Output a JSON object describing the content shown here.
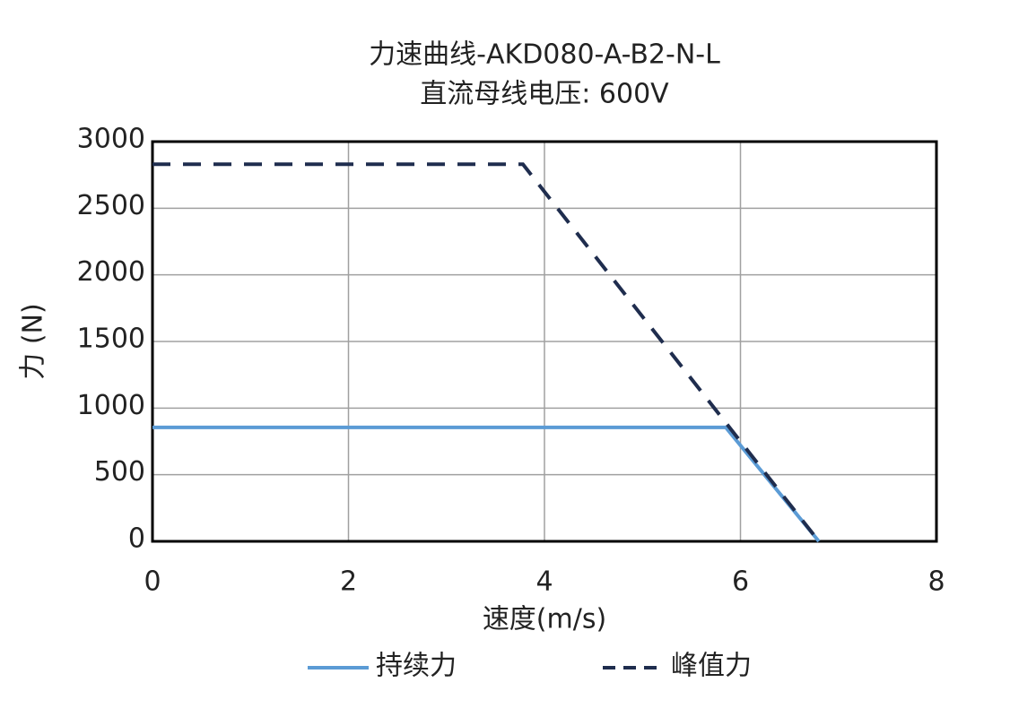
{
  "chart_data": {
    "type": "line",
    "title": "力速曲线-AKD080-A-B2-N-L",
    "subtitle": "直流母线电压: 600V",
    "x_label": "速度(m/s)",
    "y_label": "力 (N)",
    "xlim": [
      0,
      8
    ],
    "xticks": [
      0,
      2,
      4,
      6,
      8
    ],
    "ylim": [
      0,
      3000
    ],
    "yticks": [
      0,
      500,
      1000,
      1500,
      2000,
      2500,
      3000
    ],
    "grid": true,
    "legend": "bottom",
    "series": [
      {
        "name": "持续力",
        "color": "#5b9bd5",
        "dash": "solid",
        "x": [
          0,
          5.85,
          6.8
        ],
        "values": [
          855,
          855,
          0
        ]
      },
      {
        "name": "峰值力",
        "color": "#1f2d4e",
        "dash": "dashed",
        "x": [
          0,
          3.78,
          6.8
        ],
        "values": [
          2830,
          2830,
          0
        ]
      }
    ]
  }
}
